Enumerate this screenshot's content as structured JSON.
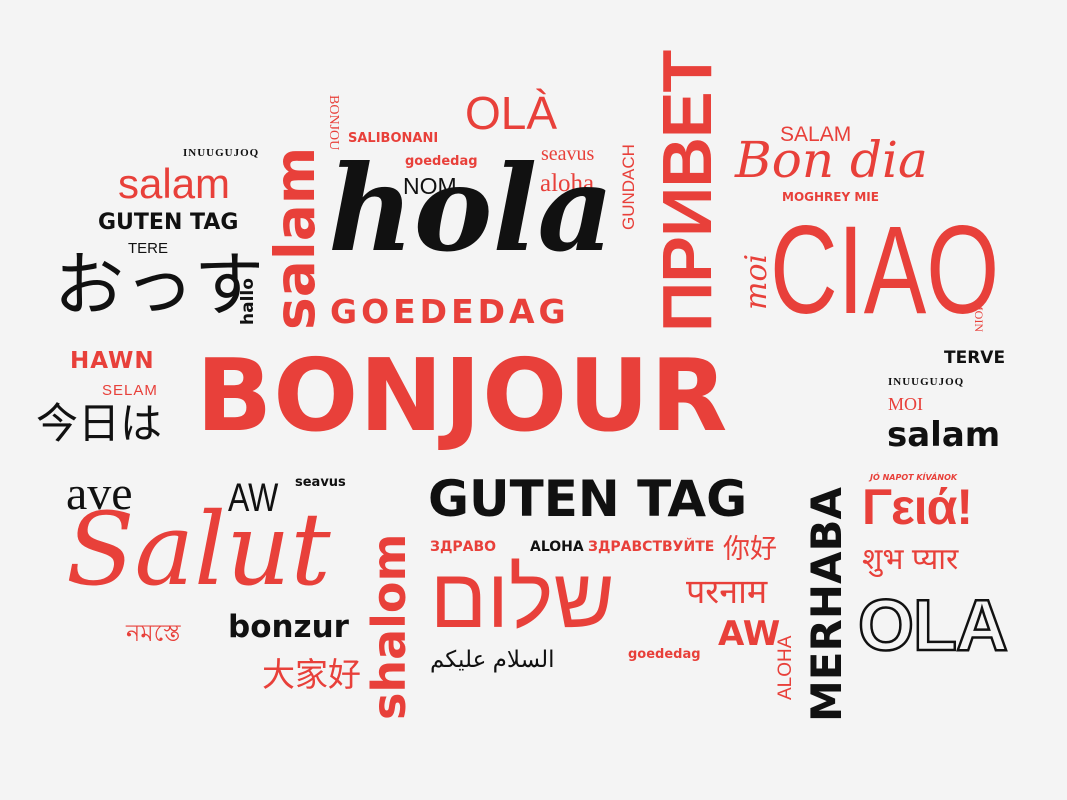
{
  "words": {
    "bonjour": "BONJOUR",
    "hola": "hola",
    "ciao": "CIAO",
    "moi_script": "moi",
    "bon_dia": "Bon dia",
    "salam_top_right": "SALAM",
    "moghrey_mie": "MOGHREY MIE",
    "privet": "ПРИВЕТ",
    "guten_tag_center": "GUTEN TAG",
    "guten_tag_left": "GUTEN TAG",
    "ola_accent": "OLÀ",
    "seavus_top": "seavus",
    "aloha_top": "aloha",
    "gundach": "GUNDACH",
    "goededag_top": "goededag",
    "nom": "NOM",
    "salibonani": "SALIBONANI",
    "bonjou": "BONJOU",
    "salam_vertical": "salam",
    "goededag_bold": "GOEDEDAG",
    "inuugujoq_left": "INUUGUJOQ",
    "salam_left": "salam",
    "tere": "TERE",
    "ossu": "おっす",
    "hallo": "hallo",
    "hawn": "HAWN",
    "selam": "SELAM",
    "konnichiwa": "今日は",
    "ave": "ave",
    "aw_left": "AW",
    "seavus_mid": "seavus",
    "salut": "Salut",
    "namaste_bengali": "নমস্তে",
    "bonzur": "bonzur",
    "dajiahao": "大家好",
    "shalom_vertical": "shalom",
    "shalom_hebrew": "שלום",
    "assalam_arabic": "السلام عليكم",
    "zdravo": "ЗДРАВО",
    "aloha_mid": "ALOHA",
    "zdravstvuyte": "ЗДРАВСТВУЙТЕ",
    "nihao": "你好",
    "namaste_hindi": "परनाम",
    "goededag_bottom": "goededag",
    "aw_red": "AW",
    "aloha_vertical": "ALOHA",
    "merhaba": "MERHABA",
    "jo_napot": "JÓ NAPOT KÍVÁNOK",
    "geia": "Γειά!",
    "shubh_pyaar": "शुभ प्यार",
    "ola_outline": "OLA",
    "moin": "MOIN",
    "terve": "TERVE",
    "inuugujoq_right": "INUUGUJOQ",
    "moi_right": "MOI",
    "salam_right": "salam"
  }
}
